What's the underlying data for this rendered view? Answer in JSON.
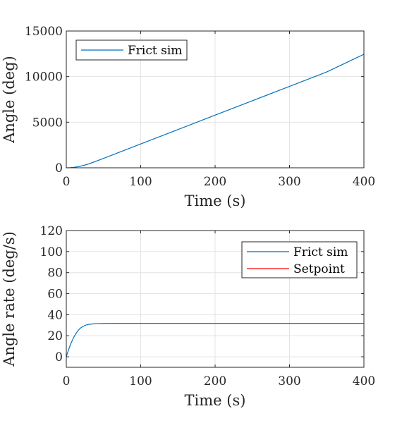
{
  "chart_data": [
    {
      "type": "line",
      "xlabel": "Time (s)",
      "ylabel": "Angle (deg)",
      "xlim": [
        0,
        400
      ],
      "ylim": [
        0,
        15000
      ],
      "xticks": [
        0,
        100,
        200,
        300,
        400
      ],
      "yticks": [
        0,
        5000,
        10000,
        15000
      ],
      "grid": true,
      "legend_position": "top-left",
      "series": [
        {
          "name": "Frict sim",
          "color": "#0072BD",
          "x": [
            0,
            5,
            10,
            15,
            20,
            25,
            30,
            40,
            50,
            100,
            150,
            200,
            250,
            300,
            350,
            400
          ],
          "y": [
            0,
            12,
            48,
            110,
            195,
            300,
            420,
            720,
            1030,
            2610,
            4190,
            5770,
            7350,
            8930,
            10510,
            12450
          ]
        }
      ]
    },
    {
      "type": "line",
      "xlabel": "Time (s)",
      "ylabel": "Angle rate (deg/s)",
      "xlim": [
        0,
        400
      ],
      "ylim": [
        -10,
        120
      ],
      "xticks": [
        0,
        100,
        200,
        300,
        400
      ],
      "yticks": [
        0,
        20,
        40,
        60,
        80,
        100,
        120
      ],
      "grid": true,
      "legend_position": "top-right",
      "series": [
        {
          "name": "Frict sim",
          "color": "#0072BD",
          "x": [
            0,
            2,
            5,
            8,
            10,
            12,
            15,
            18,
            20,
            25,
            30,
            35,
            40,
            50,
            60,
            100,
            200,
            300,
            400
          ],
          "y": [
            0,
            4.5,
            10.5,
            15.5,
            18.5,
            21,
            24.2,
            26.6,
            27.8,
            29.8,
            30.8,
            31.2,
            31.5,
            31.7,
            31.8,
            31.8,
            31.8,
            31.8,
            31.8
          ]
        },
        {
          "name": "Setpoint",
          "color": "#FF0000",
          "x": [],
          "y": []
        }
      ]
    }
  ]
}
